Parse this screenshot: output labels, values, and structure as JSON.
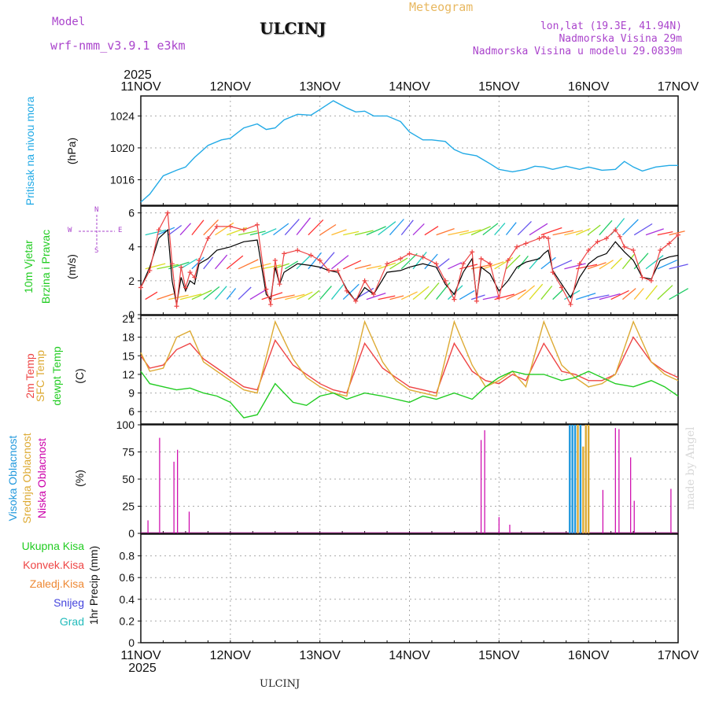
{
  "header": {
    "model_label": "Model",
    "model_name": "wrf-nmm_v3.9.1 e3km",
    "station_title": "ULCINJ",
    "meteogram_label": "Meteogram",
    "lonlat": "lon,lat (19.3E, 41.94N)",
    "elevation": "Nadmorska Visina 29m",
    "model_elevation": "Nadmorska Visina u modelu 29.0839m",
    "footer_station": "ULCINJ",
    "credit": "made by Angel"
  },
  "colors": {
    "pressure": "#22aae6",
    "wind_speed_label": "#22cc22",
    "temp2m": "#ee4444",
    "sfc_temp": "#ddaa33",
    "dewpt": "#22cc22",
    "high_cloud": "#2299dd",
    "mid_cloud": "#ddaa33",
    "low_cloud": "#cc00aa",
    "header_purple": "#aa44cc",
    "header_orange": "#e8b860"
  },
  "time_axis": {
    "top_year": "2025",
    "bottom_year": "2025",
    "ticks": [
      "11NOV",
      "12NOV",
      "13NOV",
      "14NOV",
      "15NOV",
      "16NOV",
      "17NOV"
    ]
  },
  "panel_labels": {
    "pressure": [
      "Pritisak na nivou mora",
      "(hPa)"
    ],
    "wind": [
      "10m Vjetar",
      "Brzina i Pravac",
      "(m/s)"
    ],
    "wind_compass": [
      "N",
      "W",
      "E",
      "S"
    ],
    "temp": [
      "2m Temp",
      "SFC Temp",
      "dewpt Temp",
      "(C)"
    ],
    "cloud": [
      "Visoka Oblacnost",
      "Srednja Oblacnost",
      "Niska Oblacnost",
      "(%)"
    ],
    "precip_unit": "1hr Precip (mm)",
    "precip_legend": [
      "Ukupna Kisa",
      "Konvek.Kisa",
      "Zaledj.Kisa",
      "Snijeg",
      "Grad"
    ],
    "precip_legend_colors": [
      "#22cc22",
      "#ee4444",
      "#ee8833",
      "#4444dd",
      "#22bbbb"
    ]
  },
  "chart_data": [
    {
      "type": "line",
      "title": "Pritisak na nivou mora",
      "ylabel": "(hPa)",
      "ylim": [
        1012.8,
        1026.5
      ],
      "yticks": [
        1016,
        1020,
        1024
      ],
      "x_days": [
        0,
        0.1,
        0.25,
        0.4,
        0.5,
        0.6,
        0.75,
        0.9,
        1.0,
        1.15,
        1.3,
        1.4,
        1.5,
        1.6,
        1.75,
        1.9,
        2.0,
        2.15,
        2.3,
        2.4,
        2.5,
        2.6,
        2.75,
        2.9,
        3.0,
        3.15,
        3.25,
        3.4,
        3.5,
        3.6,
        3.75,
        3.9,
        4.0,
        4.15,
        4.3,
        4.4,
        4.5,
        4.6,
        4.75,
        4.9,
        5.0,
        5.15,
        5.3,
        5.4,
        5.5,
        5.6,
        5.75,
        5.9,
        6.0
      ],
      "values": [
        1013.2,
        1014.2,
        1016.5,
        1017.2,
        1017.6,
        1018.8,
        1020.3,
        1021.0,
        1021.2,
        1022.5,
        1023.0,
        1022.3,
        1022.5,
        1023.5,
        1024.2,
        1024.1,
        1024.8,
        1025.9,
        1025.0,
        1024.5,
        1024.6,
        1024.0,
        1024.0,
        1023.3,
        1022.0,
        1021.0,
        1021.0,
        1020.8,
        1019.8,
        1019.3,
        1019.0,
        1018.0,
        1017.3,
        1017.0,
        1017.3,
        1017.7,
        1017.6,
        1017.3,
        1017.7,
        1017.3,
        1017.6,
        1017.2,
        1017.3,
        1018.3,
        1017.6,
        1017.1,
        1017.6,
        1017.8,
        1017.8
      ]
    },
    {
      "type": "line",
      "title": "10m Vjetar Brzina i Pravac",
      "ylabel": "(m/s)",
      "ylim": [
        0,
        6.4
      ],
      "yticks": [
        0,
        2,
        4,
        6
      ],
      "x_days": [
        0,
        0.1,
        0.2,
        0.3,
        0.35,
        0.4,
        0.45,
        0.5,
        0.55,
        0.6,
        0.65,
        0.75,
        0.85,
        1.0,
        1.15,
        1.3,
        1.4,
        1.45,
        1.5,
        1.55,
        1.6,
        1.75,
        1.9,
        2.0,
        2.1,
        2.2,
        2.3,
        2.4,
        2.5,
        2.6,
        2.75,
        2.9,
        3.0,
        3.15,
        3.3,
        3.4,
        3.5,
        3.6,
        3.7,
        3.75,
        3.8,
        3.9,
        4.0,
        4.1,
        4.2,
        4.3,
        4.45,
        4.5,
        4.55,
        4.6,
        4.7,
        4.8,
        4.9,
        5.0,
        5.1,
        5.2,
        5.3,
        5.35,
        5.4,
        5.5,
        5.6,
        5.7,
        5.8,
        5.9,
        6.0
      ],
      "values": [
        1.6,
        2.8,
        4.5,
        5.0,
        2.0,
        0.6,
        2.2,
        1.4,
        2.0,
        1.8,
        3.0,
        3.3,
        3.8,
        4.0,
        4.3,
        4.4,
        1.2,
        0.9,
        2.8,
        1.8,
        2.5,
        3.0,
        2.9,
        2.8,
        2.6,
        2.5,
        1.5,
        0.8,
        1.6,
        1.2,
        2.5,
        2.6,
        2.8,
        3.0,
        2.8,
        1.8,
        1.2,
        2.5,
        3.3,
        1.0,
        2.8,
        2.4,
        1.4,
        2.0,
        2.8,
        3.1,
        3.3,
        3.6,
        3.8,
        2.6,
        1.8,
        1.0,
        2.2,
        3.0,
        3.4,
        3.6,
        4.3,
        4.0,
        3.7,
        3.2,
        2.2,
        2.1,
        3.2,
        3.4,
        3.5
      ],
      "gust_values": [
        1.6,
        2.6,
        5.0,
        6.0,
        3.0,
        0.5,
        2.8,
        1.6,
        2.5,
        2.2,
        3.2,
        4.5,
        5.2,
        5.2,
        5.0,
        5.3,
        1.5,
        0.6,
        3.2,
        1.8,
        3.6,
        3.8,
        3.5,
        3.2,
        2.6,
        2.6,
        1.4,
        0.8,
        2.0,
        1.2,
        3.0,
        3.3,
        3.6,
        3.4,
        3.0,
        2.0,
        0.9,
        3.0,
        3.7,
        0.8,
        3.3,
        3.0,
        1.0,
        3.2,
        4.0,
        4.2,
        4.5,
        4.6,
        4.5,
        2.5,
        1.6,
        0.6,
        3.0,
        3.8,
        4.3,
        4.5,
        5.0,
        4.6,
        4.0,
        3.8,
        2.2,
        2.0,
        3.8,
        4.2,
        4.7
      ]
    },
    {
      "type": "line",
      "title": "2m Temp / SFC Temp / dewpt Temp",
      "ylabel": "(C)",
      "ylim": [
        4,
        21.5
      ],
      "yticks": [
        6,
        9,
        12,
        15,
        18,
        21
      ],
      "x_days": [
        0,
        0.1,
        0.25,
        0.4,
        0.55,
        0.7,
        0.85,
        1.0,
        1.15,
        1.3,
        1.5,
        1.7,
        1.85,
        2.0,
        2.15,
        2.3,
        2.5,
        2.7,
        2.85,
        3.0,
        3.15,
        3.3,
        3.5,
        3.7,
        3.85,
        4.0,
        4.15,
        4.3,
        4.5,
        4.7,
        4.85,
        5.0,
        5.15,
        5.3,
        5.5,
        5.7,
        5.85,
        6.0
      ],
      "series": [
        {
          "name": "2m Temp",
          "values": [
            15.0,
            13.0,
            13.5,
            16.0,
            17.0,
            14.5,
            13.0,
            11.5,
            10.0,
            9.5,
            17.5,
            13.5,
            12.0,
            10.5,
            9.5,
            9.0,
            17.0,
            13.0,
            11.5,
            10.0,
            9.5,
            9.0,
            17.0,
            12.5,
            11.0,
            10.5,
            12.0,
            11.0,
            17.0,
            12.5,
            12.0,
            11.0,
            11.0,
            12.0,
            18.0,
            14.0,
            12.5,
            11.5
          ]
        },
        {
          "name": "SFC Temp",
          "values": [
            15.5,
            12.5,
            13.0,
            18.0,
            19.0,
            14.0,
            12.5,
            11.0,
            9.5,
            9.0,
            20.5,
            14.5,
            11.5,
            10.0,
            9.0,
            8.5,
            20.5,
            14.0,
            11.0,
            9.5,
            9.0,
            8.5,
            20.5,
            13.5,
            10.0,
            11.0,
            12.5,
            10.0,
            20.5,
            13.5,
            11.5,
            10.0,
            10.5,
            12.0,
            20.5,
            14.0,
            12.0,
            11.0
          ]
        },
        {
          "name": "dewpt Temp",
          "values": [
            12.5,
            10.5,
            10.0,
            9.5,
            9.8,
            9.0,
            8.5,
            7.5,
            5.0,
            5.5,
            10.5,
            7.5,
            7.0,
            8.5,
            9.0,
            8.0,
            9.0,
            8.5,
            8.0,
            7.5,
            8.5,
            8.0,
            9.0,
            8.0,
            10.0,
            11.5,
            12.5,
            12.0,
            12.0,
            11.0,
            11.5,
            12.5,
            11.5,
            10.5,
            10.0,
            11.0,
            10.0,
            8.5
          ]
        }
      ]
    },
    {
      "type": "bar",
      "title": "Oblacnost",
      "ylabel": "(%)",
      "ylim": [
        0,
        100
      ],
      "yticks": [
        0,
        25,
        50,
        75,
        100
      ],
      "bars": [
        {
          "day": 0.08,
          "value": 12,
          "series": "low"
        },
        {
          "day": 0.21,
          "value": 88,
          "series": "low"
        },
        {
          "day": 0.37,
          "value": 66,
          "series": "low"
        },
        {
          "day": 0.41,
          "value": 77,
          "series": "low"
        },
        {
          "day": 0.54,
          "value": 20,
          "series": "low"
        },
        {
          "day": 3.8,
          "value": 86,
          "series": "low"
        },
        {
          "day": 3.84,
          "value": 95,
          "series": "low"
        },
        {
          "day": 4.0,
          "value": 15,
          "series": "low"
        },
        {
          "day": 4.12,
          "value": 8,
          "series": "low"
        },
        {
          "day": 4.79,
          "value": 100,
          "series": "high"
        },
        {
          "day": 4.82,
          "value": 100,
          "series": "high"
        },
        {
          "day": 4.85,
          "value": 100,
          "series": "high"
        },
        {
          "day": 4.88,
          "value": 100,
          "series": "mid"
        },
        {
          "day": 4.91,
          "value": 100,
          "series": "high"
        },
        {
          "day": 4.94,
          "value": 80,
          "series": "mid"
        },
        {
          "day": 4.97,
          "value": 100,
          "series": "mid"
        },
        {
          "day": 5.0,
          "value": 100,
          "series": "mid"
        },
        {
          "day": 5.16,
          "value": 40,
          "series": "low"
        },
        {
          "day": 5.3,
          "value": 97,
          "series": "low"
        },
        {
          "day": 5.34,
          "value": 96,
          "series": "low"
        },
        {
          "day": 5.47,
          "value": 70,
          "series": "low"
        },
        {
          "day": 5.51,
          "value": 30,
          "series": "low"
        },
        {
          "day": 5.92,
          "value": 41,
          "series": "low"
        }
      ]
    },
    {
      "type": "bar",
      "title": "1hr Precip",
      "ylabel": "(mm)",
      "ylim": [
        0,
        1.0
      ],
      "yticks": [
        0,
        0.2,
        0.4,
        0.6,
        0.8
      ],
      "ytick_labels": [
        "0",
        "0.2",
        "0.4",
        "0.6",
        "0.8"
      ],
      "values": []
    }
  ]
}
